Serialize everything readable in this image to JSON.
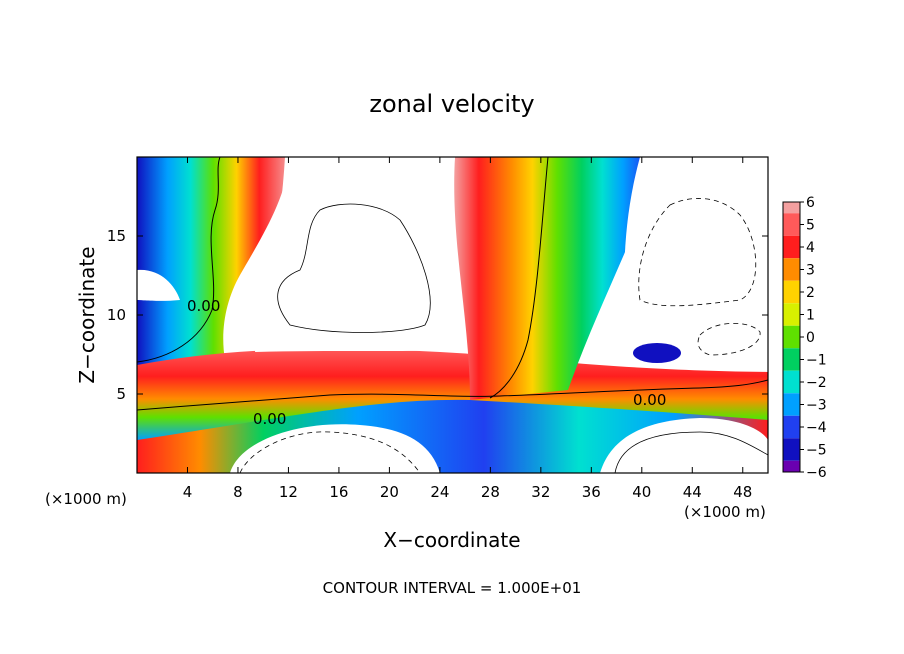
{
  "chart_data": {
    "type": "heatmap",
    "title": "zonal velocity",
    "xlabel": "X−coordinate",
    "ylabel": "Z−coordinate",
    "x_unit_label": "(×1000 m)",
    "z_unit_label": "(×1000 m)",
    "footer": "CONTOUR INTERVAL = 1.000E+01",
    "xlim": [
      0,
      50
    ],
    "ylim": [
      0,
      20
    ],
    "x_ticks": [
      4,
      8,
      12,
      16,
      20,
      24,
      28,
      32,
      36,
      40,
      44,
      48
    ],
    "y_ticks": [
      5,
      10,
      15
    ],
    "colorbar": {
      "ticks": [
        "6",
        "5",
        "4",
        "3",
        "2",
        "1",
        "0",
        "−1",
        "−2",
        "−3",
        "−4",
        "−5",
        "−6"
      ],
      "colors": [
        "#f4a0a0",
        "#ff5a5a",
        "#ff1e1e",
        "#ff8c00",
        "#ffd200",
        "#d8f000",
        "#5fe000",
        "#00d060",
        "#00e0d0",
        "#00a0ff",
        "#2040f0",
        "#1010c0",
        "#6a00b0"
      ]
    },
    "contour_labels": [
      "0.00",
      "0.00",
      "0.00"
    ]
  }
}
